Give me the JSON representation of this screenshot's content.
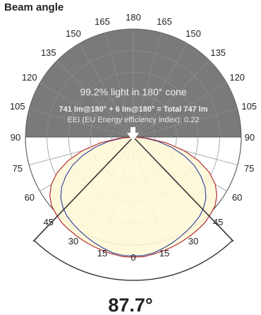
{
  "page_title": "Beam angle",
  "colors": {
    "upper_fill": "#7a7a7a",
    "lower_fill": "#ffffff",
    "grid": "#9a9a9a",
    "lobe_fill": "#fff8d8",
    "curve_red": "#b03030",
    "curve_blue": "#3848a0",
    "beam_lines": "#333333"
  },
  "chart_data": {
    "type": "polar",
    "title": "Beam angle",
    "angle_labels_upper": [
      "90",
      "105",
      "120",
      "135",
      "150",
      "165",
      "180",
      "165",
      "150",
      "135",
      "120",
      "105",
      "90"
    ],
    "angle_labels_lower": [
      "90",
      "75",
      "60",
      "45",
      "30",
      "15",
      "0",
      "15",
      "30",
      "45",
      "60",
      "75",
      "90"
    ],
    "light_in_cone_text": "99.2% light in 180° cone",
    "lumen_text": "741 lm@180° + 6 lm@180° = Total 747 lm",
    "eei_text": "EEI (EU Energy efficiency index): 0.22",
    "beam_angle_deg": 87.7,
    "beam_angle_label": "87.7°",
    "series": [
      {
        "color": "red",
        "angles_deg": [
          0,
          5,
          10,
          15,
          20,
          25,
          30,
          35,
          40,
          45,
          50,
          55,
          60,
          65,
          70,
          75,
          80,
          85,
          90
        ],
        "relative_intensity": [
          1.0,
          1.0,
          0.99,
          0.98,
          0.97,
          0.96,
          0.95,
          0.94,
          0.93,
          0.91,
          0.89,
          0.85,
          0.79,
          0.7,
          0.58,
          0.44,
          0.28,
          0.12,
          0.0
        ]
      },
      {
        "color": "blue",
        "angles_deg": [
          0,
          5,
          10,
          15,
          20,
          25,
          30,
          35,
          40,
          45,
          50,
          55,
          60,
          65,
          70,
          75,
          80,
          85,
          90
        ],
        "relative_intensity": [
          0.99,
          0.99,
          0.98,
          0.96,
          0.94,
          0.92,
          0.9,
          0.88,
          0.86,
          0.83,
          0.79,
          0.73,
          0.65,
          0.56,
          0.45,
          0.33,
          0.21,
          0.09,
          0.0
        ]
      }
    ]
  }
}
